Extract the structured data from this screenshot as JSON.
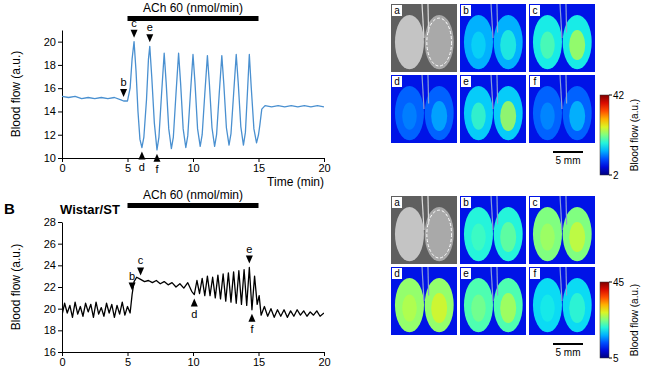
{
  "chart_data": [
    {
      "type": "line",
      "x_label": "Time (min)",
      "y_label": "Blood flow (a.u.)",
      "xlim": [
        0,
        20
      ],
      "xticks": [
        0,
        5,
        10,
        15,
        20
      ],
      "ylim": [
        10,
        21
      ],
      "yticks": [
        10,
        12,
        14,
        16,
        18,
        20
      ],
      "color": "#4a90d0",
      "x": [
        0,
        0.5,
        1,
        1.5,
        2,
        2.5,
        3,
        3.5,
        4,
        4.5,
        4.7,
        5.0,
        5.2,
        5.35,
        5.5,
        5.65,
        5.8,
        5.95,
        6.1,
        6.25,
        6.45,
        6.6,
        6.7,
        6.85,
        7.05,
        7.25,
        7.4,
        7.6,
        7.8,
        7.95,
        8.15,
        8.35,
        8.5,
        8.7,
        8.9,
        9.05,
        9.25,
        9.45,
        9.6,
        9.8,
        10.0,
        10.15,
        10.35,
        10.55,
        10.7,
        10.9,
        11.1,
        11.25,
        11.45,
        11.65,
        11.8,
        12.0,
        12.2,
        12.35,
        12.55,
        12.75,
        12.9,
        13.1,
        13.3,
        13.45,
        13.65,
        13.85,
        14.0,
        14.15,
        14.3,
        14.45,
        14.65,
        14.85,
        15.0,
        15.1,
        15.25,
        15.5,
        16,
        16.5,
        17,
        17.5,
        18,
        18.5,
        19,
        19.5,
        20
      ],
      "values": [
        15.3,
        15.2,
        15.3,
        15.1,
        15.2,
        15.1,
        15.2,
        15.1,
        15.2,
        15.0,
        14.9,
        14.9,
        16.0,
        18.5,
        20.0,
        17.5,
        14.0,
        11.6,
        10.9,
        11.8,
        15.0,
        18.5,
        19.6,
        17.0,
        13.0,
        10.7,
        11.8,
        15.5,
        19.0,
        16.5,
        12.5,
        10.8,
        11.8,
        15.5,
        19.0,
        16.5,
        12.5,
        10.9,
        11.9,
        15.5,
        18.9,
        16.5,
        12.5,
        11.0,
        12.0,
        15.5,
        18.8,
        16.4,
        12.6,
        11.0,
        12.0,
        15.5,
        18.8,
        16.4,
        12.6,
        11.1,
        12.1,
        15.5,
        18.9,
        16.5,
        12.7,
        11.1,
        12.2,
        15.5,
        18.9,
        16.0,
        12.5,
        11.3,
        12.0,
        12.8,
        14.2,
        14.5,
        14.4,
        14.5,
        14.4,
        14.5,
        14.4,
        14.5,
        14.4,
        14.5,
        14.4
      ],
      "stimulus": {
        "label": "ACh 60 (nmol/min)",
        "x": [
          5,
          15
        ]
      },
      "annotations": [
        {
          "text": "b",
          "x": 4.7,
          "y": 14.9,
          "direction": "down"
        },
        {
          "text": "c",
          "x": 5.5,
          "y": 20.0,
          "direction": "down"
        },
        {
          "text": "d",
          "x": 6.1,
          "y": 10.9,
          "direction": "up"
        },
        {
          "text": "e",
          "x": 6.7,
          "y": 19.6,
          "direction": "down"
        },
        {
          "text": "f",
          "x": 7.25,
          "y": 10.7,
          "direction": "up"
        }
      ],
      "images": {
        "panels": [
          "a",
          "b",
          "c",
          "d",
          "e",
          "f"
        ],
        "colorbar": {
          "label": "Blood flow (a.u.)",
          "range": [
            2,
            42
          ],
          "ticks": [
            2,
            42
          ]
        },
        "scale_bar": "5 mm"
      }
    },
    {
      "type": "line",
      "title": "B",
      "subtitle": "Wistar/ST",
      "y_label": "Blood flow (a.u.)",
      "xlim": [
        0,
        20
      ],
      "xticks": [
        0,
        5,
        10,
        15,
        20
      ],
      "ylim": [
        16,
        28
      ],
      "yticks": [
        16,
        18,
        20,
        22,
        24,
        26,
        28
      ],
      "color": "#000000",
      "x": [
        0,
        0.2,
        0.4,
        0.6,
        0.8,
        1,
        1.2,
        1.4,
        1.6,
        1.8,
        2,
        2.2,
        2.4,
        2.6,
        2.8,
        3,
        3.2,
        3.4,
        3.6,
        3.8,
        4,
        4.2,
        4.4,
        4.6,
        4.8,
        5,
        5.2,
        5.35,
        5.5,
        5.7,
        6.0,
        6.3,
        6.6,
        6.9,
        7.2,
        7.5,
        7.8,
        8.1,
        8.4,
        8.7,
        9.0,
        9.3,
        9.6,
        9.9,
        10.1,
        10.3,
        10.5,
        10.7,
        10.9,
        11.1,
        11.3,
        11.5,
        11.7,
        11.9,
        12.1,
        12.3,
        12.5,
        12.7,
        12.9,
        13.1,
        13.3,
        13.5,
        13.7,
        13.9,
        14.1,
        14.3,
        14.5,
        14.7,
        14.9,
        15.05,
        15.2,
        15.45,
        15.7,
        15.95,
        16.2,
        16.45,
        16.7,
        16.95,
        17.2,
        17.45,
        17.7,
        17.95,
        18.2,
        18.45,
        18.7,
        18.95,
        19.2,
        19.45,
        19.7,
        20.0
      ],
      "values": [
        19.4,
        20.5,
        19.6,
        20.3,
        19.2,
        20.6,
        19.5,
        20.2,
        19.3,
        20.5,
        19.7,
        20.4,
        19.2,
        20.6,
        19.5,
        20.1,
        19.3,
        20.5,
        19.6,
        20.4,
        19.2,
        20.3,
        19.5,
        20.6,
        19.4,
        20.2,
        19.6,
        21.3,
        22.5,
        22.9,
        22.7,
        22.5,
        22.6,
        22.4,
        22.6,
        22.3,
        22.5,
        22.2,
        22.4,
        22.0,
        22.3,
        21.9,
        22.4,
        21.6,
        21.3,
        22.6,
        21.4,
        22.8,
        21.2,
        23.0,
        21.2,
        22.9,
        21.0,
        23.1,
        20.9,
        23.2,
        20.7,
        23.3,
        20.6,
        23.4,
        20.5,
        23.5,
        20.4,
        23.6,
        20.3,
        23.8,
        19.9,
        23.0,
        20.4,
        21.2,
        19.4,
        20.2,
        19.3,
        20.0,
        19.2,
        19.9,
        19.3,
        19.9,
        19.2,
        19.8,
        19.3,
        19.9,
        19.4,
        19.8,
        19.3,
        19.7,
        19.4,
        19.8,
        19.3,
        19.6
      ],
      "stimulus": {
        "label": "ACh 60 (nmol/min)",
        "x": [
          5,
          15
        ]
      },
      "annotations": [
        {
          "text": "b",
          "x": 5.35,
          "y": 21.3,
          "direction": "down"
        },
        {
          "text": "c",
          "x": 6.0,
          "y": 22.7,
          "direction": "down"
        },
        {
          "text": "d",
          "x": 10.1,
          "y": 21.3,
          "direction": "up"
        },
        {
          "text": "e",
          "x": 14.3,
          "y": 23.8,
          "direction": "down"
        },
        {
          "text": "f",
          "x": 14.5,
          "y": 19.9,
          "direction": "up"
        }
      ],
      "images": {
        "panels": [
          "a",
          "b",
          "c",
          "d",
          "e",
          "f"
        ],
        "colorbar": {
          "label": "Blood flow (a.u.)",
          "range": [
            5,
            45
          ],
          "ticks": [
            5,
            45
          ]
        },
        "scale_bar": "5 mm"
      }
    }
  ]
}
